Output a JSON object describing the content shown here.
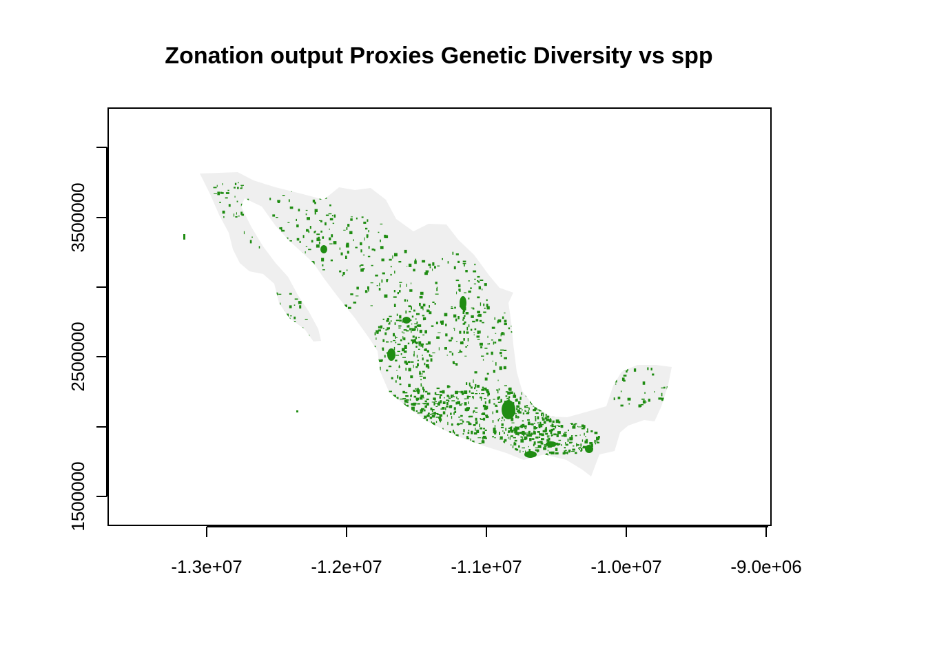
{
  "title": "Zonation output Proxies Genetic Diversity vs spp",
  "colors": {
    "land": "#efefef",
    "selected_areas": "#1f8c12",
    "frame": "#000000"
  },
  "map_data": {
    "type": "raster-map",
    "region_shown": "Mexico",
    "x_axis": {
      "range": [
        -13700000,
        -8950000
      ],
      "ticks": [
        -13000000,
        -12000000,
        -11000000,
        -10000000,
        -9000000
      ],
      "tick_labels": [
        "-1.3e+07",
        "-1.2e+07",
        "-1.1e+07",
        "-1.0e+07",
        "-9.0e+06"
      ]
    },
    "y_axis": {
      "range": [
        1300000,
        4300000
      ],
      "ticks": [
        1500000,
        2000000,
        2500000,
        3000000,
        3500000,
        4000000
      ],
      "tick_labels": [
        "1500000",
        "",
        "2500000",
        "",
        "3500000",
        ""
      ]
    }
  }
}
